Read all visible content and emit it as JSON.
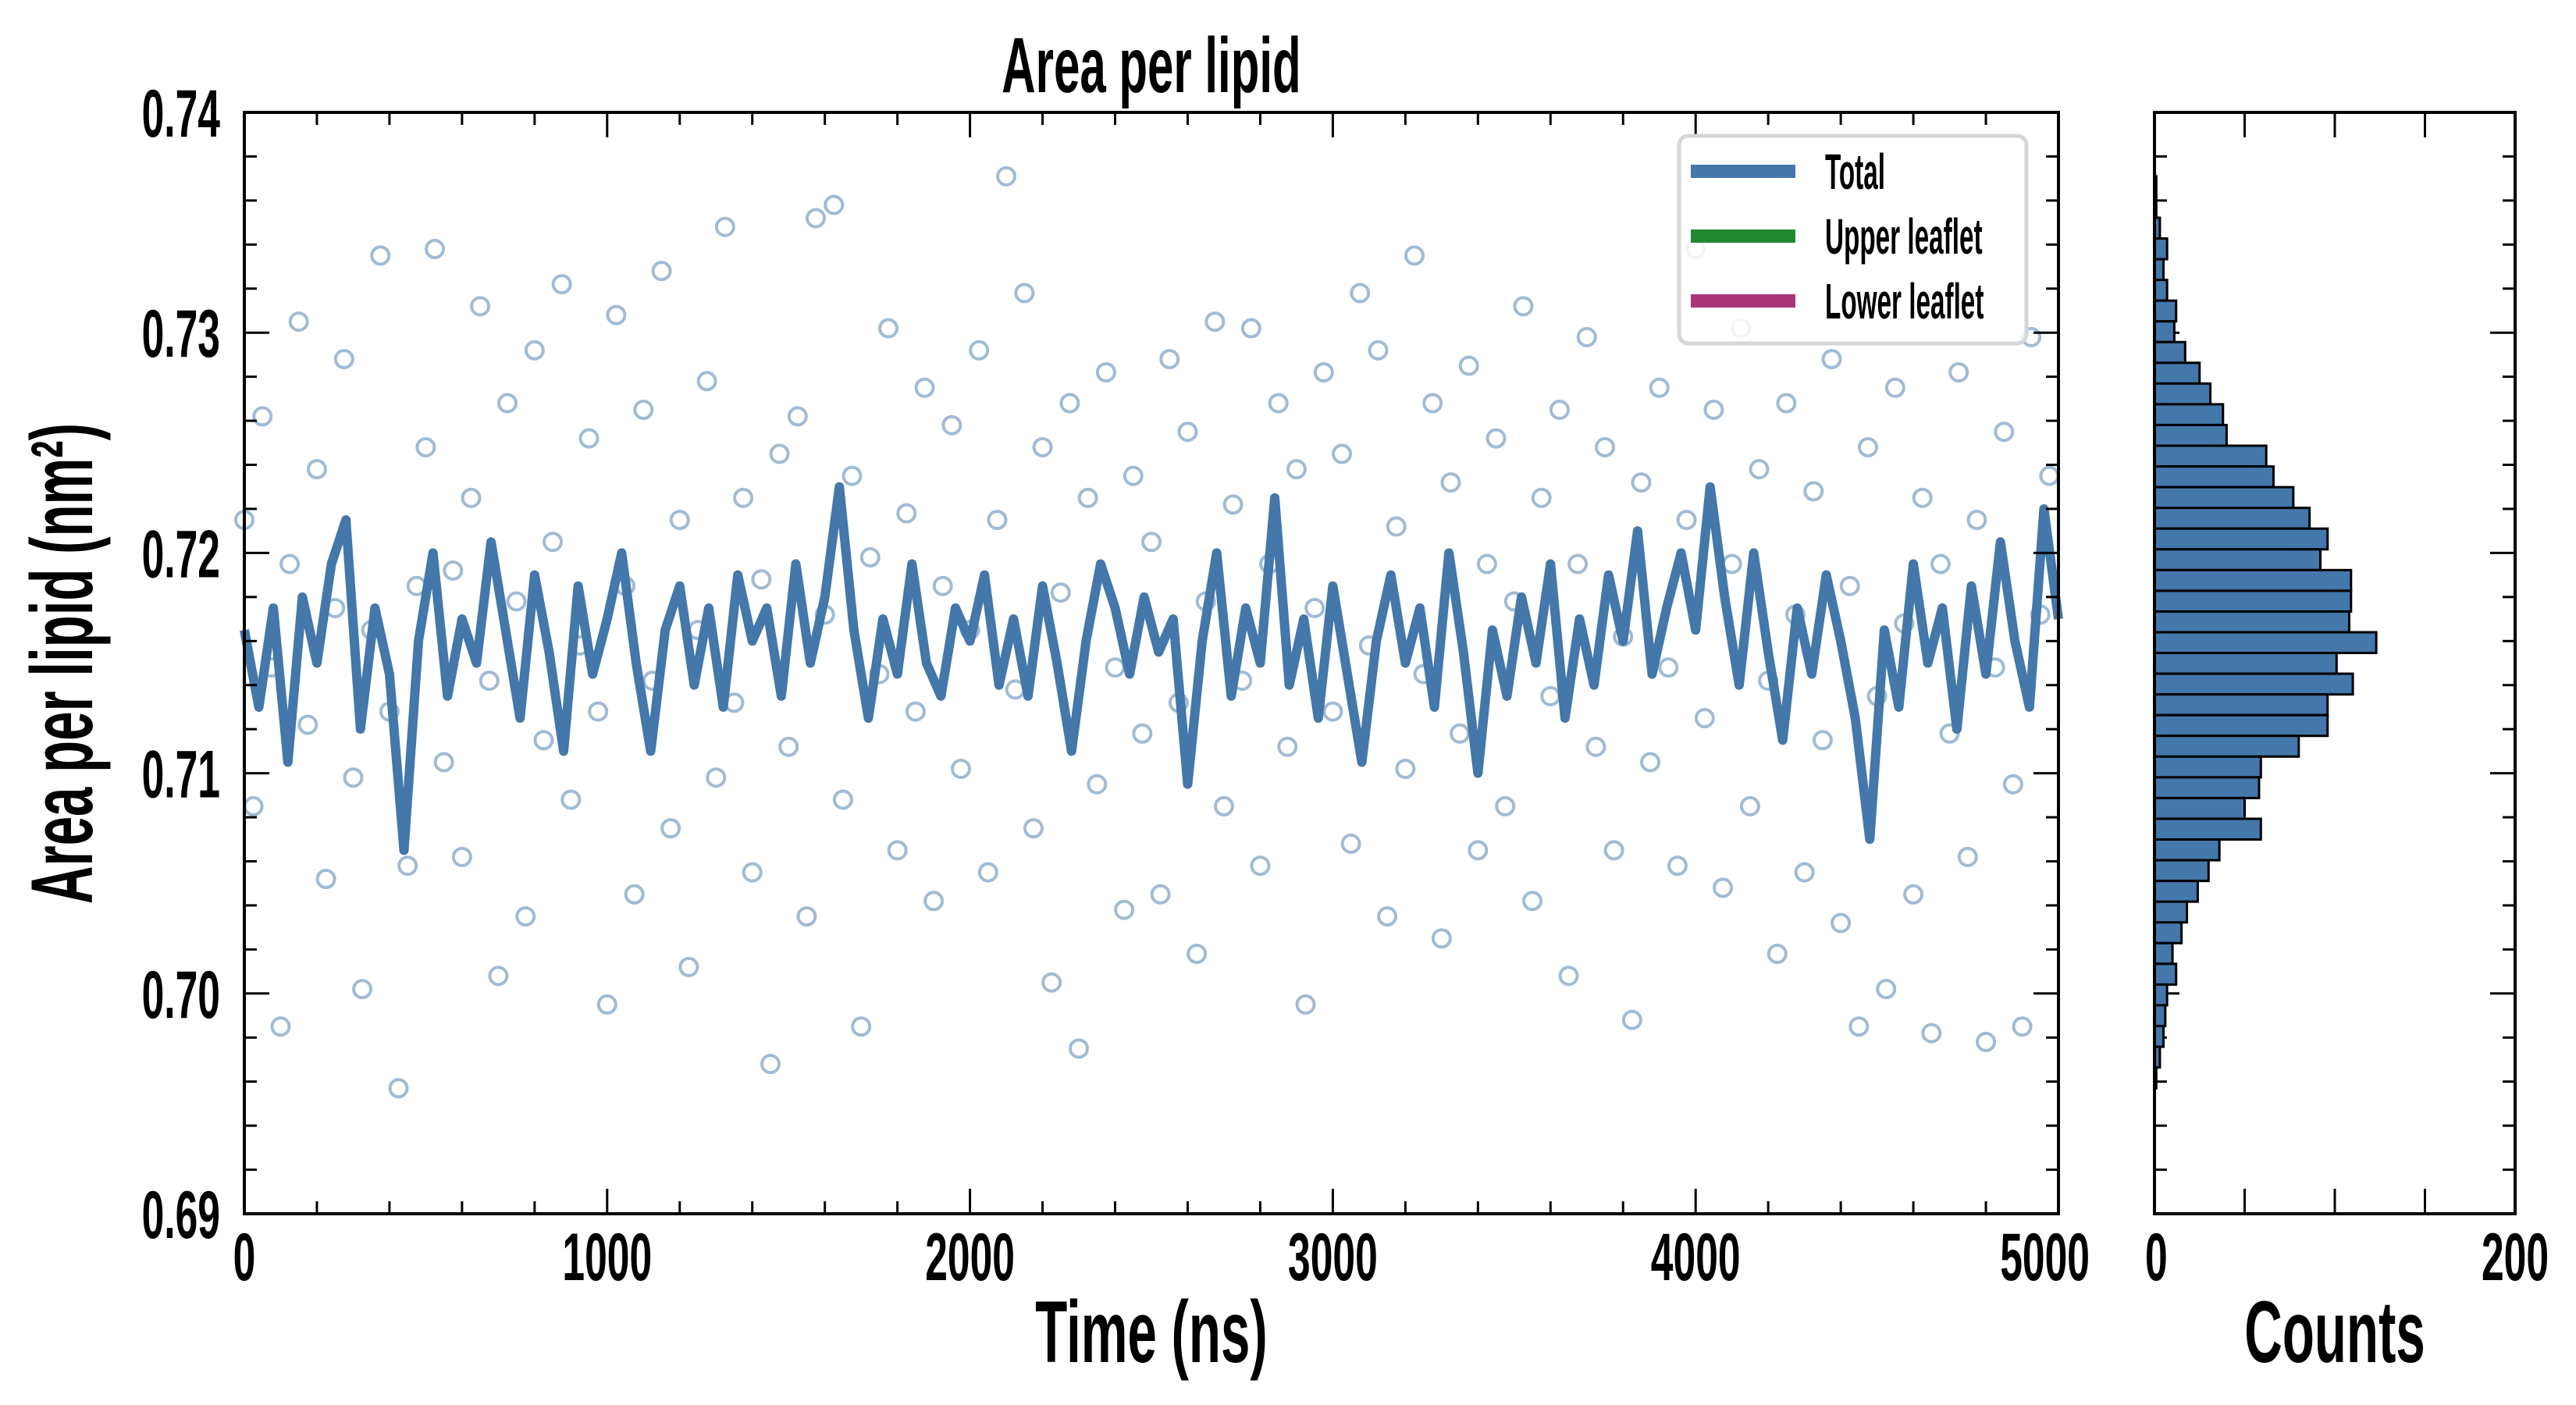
{
  "chart_data": [
    {
      "type": "line+scatter",
      "title": "Area per lipid",
      "xlabel": "Time (ns)",
      "ylabel": "Area per lipid (nm²)",
      "xlim": [
        0,
        5000
      ],
      "ylim": [
        0.69,
        0.74
      ],
      "xticks": [
        0,
        1000,
        2000,
        3000,
        4000,
        5000
      ],
      "xtick_labels": [
        "0",
        "1000",
        "2000",
        "3000",
        "4000",
        "5000"
      ],
      "yticks": [
        0.69,
        0.7,
        0.71,
        0.72,
        0.73,
        0.74
      ],
      "ytick_labels": [
        "0.69",
        "0.70",
        "0.71",
        "0.72",
        "0.73",
        "0.74"
      ],
      "grid": false,
      "legend": {
        "placement": "top-right",
        "entries": [
          {
            "label": "Total",
            "color": "#4477aa"
          },
          {
            "label": "Upper leaflet",
            "color": "#228833"
          },
          {
            "label": "Lower leaflet",
            "color": "#aa3377"
          }
        ]
      },
      "series": [
        {
          "name": "Total (smoothed)",
          "kind": "line",
          "color": "#4477aa",
          "x_start": 0,
          "x_step": 40,
          "values": [
            0.7165,
            0.713,
            0.7175,
            0.7105,
            0.718,
            0.715,
            0.7195,
            0.7215,
            0.712,
            0.7175,
            0.7145,
            0.7065,
            0.716,
            0.72,
            0.7135,
            0.717,
            0.715,
            0.7205,
            0.7165,
            0.7125,
            0.719,
            0.7155,
            0.711,
            0.7185,
            0.7145,
            0.717,
            0.72,
            0.715,
            0.711,
            0.7165,
            0.7185,
            0.714,
            0.7175,
            0.713,
            0.719,
            0.716,
            0.7175,
            0.7135,
            0.7195,
            0.715,
            0.718,
            0.723,
            0.7165,
            0.7125,
            0.717,
            0.7145,
            0.7195,
            0.715,
            0.7135,
            0.7175,
            0.716,
            0.719,
            0.714,
            0.717,
            0.7135,
            0.7185,
            0.715,
            0.711,
            0.716,
            0.7195,
            0.7175,
            0.7145,
            0.718,
            0.7155,
            0.717,
            0.7095,
            0.716,
            0.72,
            0.7135,
            0.7175,
            0.715,
            0.7225,
            0.714,
            0.717,
            0.7125,
            0.7185,
            0.7145,
            0.7105,
            0.716,
            0.719,
            0.715,
            0.7175,
            0.713,
            0.72,
            0.7155,
            0.71,
            0.7165,
            0.7135,
            0.718,
            0.715,
            0.7195,
            0.7125,
            0.717,
            0.714,
            0.719,
            0.716,
            0.721,
            0.7145,
            0.7175,
            0.72,
            0.7165,
            0.723,
            0.718,
            0.714,
            0.72,
            0.7155,
            0.7115,
            0.7175,
            0.7145,
            0.719,
            0.716,
            0.7125,
            0.707,
            0.7165,
            0.713,
            0.7195,
            0.715,
            0.7175,
            0.712,
            0.7185,
            0.7145,
            0.7205,
            0.716,
            0.713,
            0.722,
            0.717
          ]
        },
        {
          "name": "Total (raw)",
          "kind": "scatter",
          "marker": "open-circle",
          "color": "#4477aa",
          "x_start": 0,
          "x_step": 25,
          "values": [
            0.7215,
            0.7085,
            0.7262,
            0.7148,
            0.6985,
            0.7195,
            0.7305,
            0.7122,
            0.7238,
            0.7052,
            0.7175,
            0.7288,
            0.7098,
            0.7002,
            0.7165,
            0.7335,
            0.7128,
            0.6957,
            0.7058,
            0.7185,
            0.7248,
            0.7338,
            0.7105,
            0.7192,
            0.7062,
            0.7225,
            0.7312,
            0.7142,
            0.7008,
            0.7268,
            0.7178,
            0.7035,
            0.7292,
            0.7115,
            0.7205,
            0.7322,
            0.7088,
            0.7158,
            0.7252,
            0.7128,
            0.6995,
            0.7308,
            0.7185,
            0.7045,
            0.7265,
            0.7142,
            0.7328,
            0.7075,
            0.7215,
            0.7012,
            0.7165,
            0.7278,
            0.7098,
            0.7348,
            0.7132,
            0.7225,
            0.7055,
            0.7188,
            0.6968,
            0.7245,
            0.7112,
            0.7262,
            0.7035,
            0.7352,
            0.7172,
            0.7358,
            0.7088,
            0.7235,
            0.6985,
            0.7198,
            0.7145,
            0.7302,
            0.7065,
            0.7218,
            0.7128,
            0.7275,
            0.7042,
            0.7185,
            0.7258,
            0.7102,
            0.7165,
            0.7292,
            0.7055,
            0.7215,
            0.7371,
            0.7138,
            0.7318,
            0.7075,
            0.7248,
            0.7005,
            0.7182,
            0.7268,
            0.6975,
            0.7225,
            0.7095,
            0.7282,
            0.7148,
            0.7038,
            0.7235,
            0.7118,
            0.7205,
            0.7045,
            0.7288,
            0.7132,
            0.7255,
            0.7018,
            0.7178,
            0.7305,
            0.7085,
            0.7222,
            0.7142,
            0.7302,
            0.7058,
            0.7195,
            0.7268,
            0.7112,
            0.7238,
            0.6995,
            0.7175,
            0.7282,
            0.7128,
            0.7245,
            0.7068,
            0.7318,
            0.7158,
            0.7292,
            0.7035,
            0.7212,
            0.7102,
            0.7335,
            0.7145,
            0.7268,
            0.7025,
            0.7232,
            0.7118,
            0.7285,
            0.7065,
            0.7195,
            0.7252,
            0.7085,
            0.7178,
            0.7312,
            0.7042,
            0.7225,
            0.7135,
            0.7265,
            0.7008,
            0.7195,
            0.7298,
            0.7112,
            0.7248,
            0.7065,
            0.7162,
            0.6988,
            0.7232,
            0.7105,
            0.7275,
            0.7148,
            0.7058,
            0.7215,
            0.7338,
            0.7125,
            0.7265,
            0.7048,
            0.7195,
            0.7302,
            0.7085,
            0.7238,
            0.7142,
            0.7018,
            0.7268,
            0.7172,
            0.7055,
            0.7228,
            0.7115,
            0.7288,
            0.7032,
            0.7185,
            0.6985,
            0.7248,
            0.7135,
            0.7002,
            0.7275,
            0.7168,
            0.7045,
            0.7225,
            0.6982,
            0.7195,
            0.7118,
            0.7282,
            0.7062,
            0.7215,
            0.6978,
            0.7148,
            0.7255,
            0.7095,
            0.6985,
            0.7298,
            0.7172,
            0.7235
          ]
        }
      ]
    },
    {
      "type": "bar",
      "orientation": "horizontal",
      "xlabel": "Counts",
      "xlim": [
        0,
        200
      ],
      "xticks": [
        0,
        50,
        100,
        150,
        200
      ],
      "xtick_labels": [
        "0",
        "200"
      ],
      "ylim": [
        0.69,
        0.74
      ],
      "color": "#4477aa",
      "edgecolor": "#000000",
      "bin_range": [
        0.6957,
        0.7371
      ],
      "counts_top_to_bottom": [
        1,
        1,
        3,
        7,
        5,
        7,
        12,
        11,
        17,
        25,
        31,
        38,
        40,
        62,
        66,
        77,
        86,
        96,
        92,
        109,
        109,
        108,
        123,
        101,
        110,
        96,
        96,
        80,
        59,
        58,
        50,
        59,
        36,
        30,
        24,
        18,
        15,
        10,
        12,
        7,
        6,
        5,
        3,
        1
      ]
    }
  ]
}
